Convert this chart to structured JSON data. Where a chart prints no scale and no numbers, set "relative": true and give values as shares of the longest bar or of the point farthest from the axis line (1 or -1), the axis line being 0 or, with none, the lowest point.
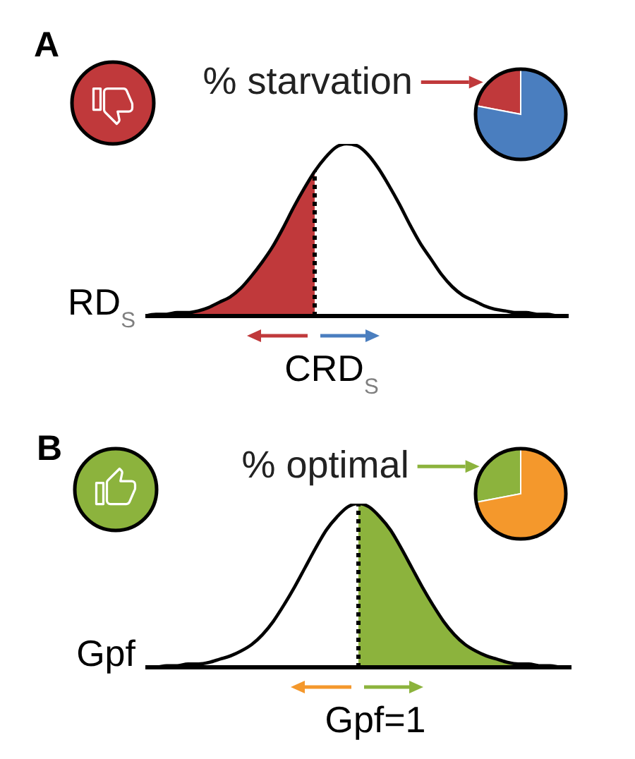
{
  "chart_data": [
    {
      "type": "area",
      "title": "A",
      "xlabel": "RD$_{S}$",
      "relative": true,
      "categories": [
        null,
        null,
        null,
        null,
        null,
        null,
        null,
        null,
        null,
        null,
        null,
        null,
        null,
        null,
        null,
        null,
        null,
        null,
        null,
        null,
        null,
        null,
        null,
        null,
        null,
        null,
        null,
        null,
        null,
        null,
        null,
        null,
        null,
        null,
        null,
        null,
        null,
        null,
        null,
        null,
        null
      ],
      "series": [
        {
          "type": "area",
          "color": "#c0393b",
          "values": [
            0,
            0.01,
            0.01,
            0.02,
            0.02,
            0.03,
            0.05,
            0.08,
            0.11,
            0.16,
            0.23,
            0.31,
            0.4,
            0.51,
            0.63,
            0.74,
            0.84,
            null,
            null,
            null,
            null,
            null,
            null,
            null,
            null,
            null,
            null,
            null,
            null,
            null,
            null,
            null,
            null,
            null,
            null,
            null,
            null,
            null,
            null,
            null,
            null
          ]
        },
        {
          "type": "line",
          "color": "#000000",
          "values": [
            0,
            0.01,
            0.01,
            0.02,
            0.02,
            0.03,
            0.05,
            0.08,
            0.11,
            0.16,
            0.23,
            0.31,
            0.4,
            0.51,
            0.63,
            0.74,
            0.84,
            0.92,
            0.98,
            1,
            0.99,
            0.94,
            0.86,
            0.76,
            0.65,
            0.53,
            0.42,
            0.33,
            0.24,
            0.17,
            0.12,
            0.09,
            0.06,
            0.04,
            0.03,
            0.02,
            0.02,
            0.01,
            0.01,
            0,
            0
          ]
        }
      ],
      "ref_lines": [
        {
          "axis": "x",
          "label": "CRD$_{S}$",
          "line_style": "dotted",
          "color": "#000000"
        }
      ]
    },
    {
      "type": "pie",
      "categories": [
        "% starvation",
        null
      ],
      "values": [
        22,
        78
      ],
      "colors": [
        "#c0393b",
        "#4a7ebf"
      ]
    },
    {
      "type": "area",
      "title": "B",
      "xlabel": "Gpf",
      "relative": true,
      "categories": [
        null,
        null,
        null,
        null,
        null,
        null,
        null,
        null,
        null,
        null,
        null,
        null,
        null,
        null,
        null,
        null,
        null,
        null,
        null,
        null,
        null,
        null,
        null,
        null,
        null,
        null,
        null,
        null,
        null,
        null,
        null,
        null,
        null,
        null,
        null,
        null,
        null,
        null,
        null,
        null,
        null
      ],
      "series": [
        {
          "type": "area",
          "color": "#8cb33d",
          "values": [
            null,
            null,
            null,
            null,
            null,
            null,
            null,
            null,
            null,
            null,
            null,
            null,
            null,
            null,
            null,
            null,
            null,
            null,
            null,
            null,
            1,
            0.98,
            0.92,
            0.84,
            0.73,
            0.61,
            0.49,
            0.38,
            0.28,
            0.2,
            0.14,
            0.1,
            0.07,
            0.05,
            0.03,
            0.02,
            0.02,
            0.01,
            0.01,
            0,
            0
          ]
        },
        {
          "type": "line",
          "color": "#000000",
          "values": [
            0,
            0,
            0.01,
            0.01,
            0.02,
            0.02,
            0.03,
            0.05,
            0.07,
            0.1,
            0.14,
            0.2,
            0.28,
            0.38,
            0.49,
            0.61,
            0.73,
            0.84,
            0.92,
            0.98,
            1,
            0.98,
            0.92,
            0.84,
            0.73,
            0.61,
            0.49,
            0.38,
            0.28,
            0.2,
            0.14,
            0.1,
            0.07,
            0.05,
            0.03,
            0.02,
            0.02,
            0.01,
            0.01,
            0,
            0
          ]
        }
      ],
      "ref_lines": [
        {
          "axis": "x",
          "label": "Gpf=1",
          "line_style": "dotted",
          "color": "#000000"
        }
      ]
    },
    {
      "type": "pie",
      "categories": [
        "% optimal",
        null
      ],
      "values": [
        28,
        72
      ],
      "colors": [
        "#8cb33d",
        "#f4982c"
      ]
    }
  ]
}
